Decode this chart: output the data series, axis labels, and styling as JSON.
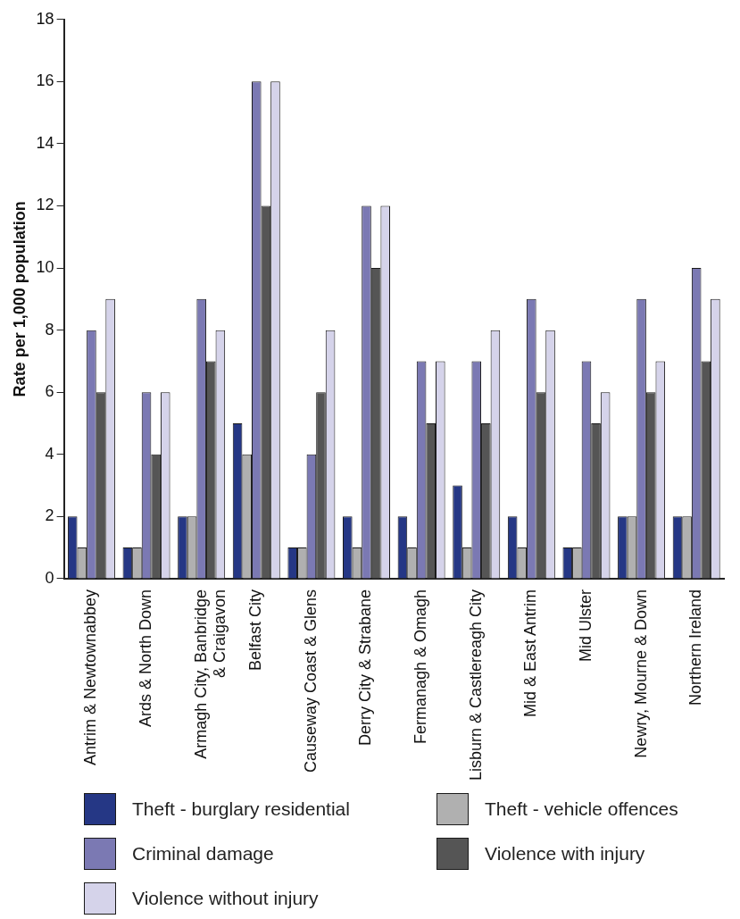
{
  "chart_data": {
    "type": "bar",
    "ylabel": "Rate per 1,000 population",
    "categories": [
      "Antrim & Newtownabbey",
      "Ards & North Down",
      "Armagh City, Banbridge & Craigavon",
      "Belfast City",
      "Causeway Coast & Glens",
      "Derry City & Strabane",
      "Fermanagh & Omagh",
      "Lisburn & Castlereagh City",
      "Mid & East Antrim",
      "Mid Ulster",
      "Newry, Mourne & Down",
      "Northern Ireland"
    ],
    "series": [
      {
        "name": "Theft - burglary residential",
        "color": "#253785",
        "values": [
          2,
          1,
          2,
          5,
          1,
          2,
          2,
          3,
          2,
          1,
          2,
          2
        ]
      },
      {
        "name": "Theft - vehicle offences",
        "color": "#b0b0b0",
        "values": [
          1,
          1,
          2,
          4,
          1,
          1,
          1,
          1,
          1,
          1,
          2,
          2
        ]
      },
      {
        "name": "Criminal damage",
        "color": "#7b79b3",
        "values": [
          8,
          6,
          9,
          16,
          4,
          12,
          7,
          7,
          9,
          7,
          9,
          10
        ]
      },
      {
        "name": "Violence with injury",
        "color": "#555555",
        "values": [
          6,
          4,
          7,
          12,
          6,
          10,
          5,
          5,
          6,
          5,
          6,
          7
        ]
      },
      {
        "name": "Violence without injury",
        "color": "#d5d3ea",
        "values": [
          9,
          6,
          8,
          16,
          8,
          12,
          7,
          8,
          8,
          6,
          7,
          9
        ]
      }
    ],
    "ylim": [
      0,
      18
    ],
    "yticks": [
      0,
      2,
      4,
      6,
      8,
      10,
      12,
      14,
      16,
      18
    ],
    "grid": false,
    "legend": "bottom"
  }
}
